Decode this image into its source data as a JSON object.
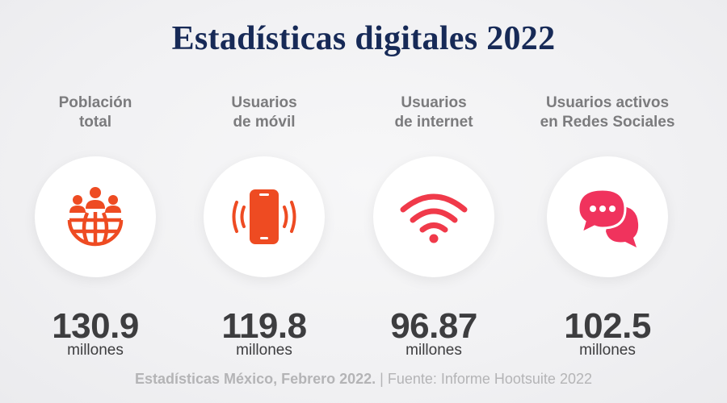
{
  "title": "Estadísticas digitales 2022",
  "stats": [
    {
      "label_line1": "Población",
      "label_line2": "total",
      "value": "130.9",
      "unit": "millones",
      "icon": "population-globe-icon",
      "icon_color": "#ee4b22"
    },
    {
      "label_line1": "Usuarios",
      "label_line2": "de móvil",
      "value": "119.8",
      "unit": "millones",
      "icon": "mobile-phone-icon",
      "icon_color": "#ee4b22"
    },
    {
      "label_line1": "Usuarios",
      "label_line2": "de internet",
      "value": "96.87",
      "unit": "millones",
      "icon": "wifi-icon",
      "icon_color": "#f03a4a"
    },
    {
      "label_line1": "Usuarios activos",
      "label_line2": "en Redes Sociales",
      "value": "102.5",
      "unit": "millones",
      "icon": "chat-bubbles-icon",
      "icon_color": "#f0335d"
    }
  ],
  "footer": {
    "source_bold": "Estadísticas México, Febrero 2022.",
    "source_rest": " | Fuente: Informe Hootsuite 2022"
  }
}
